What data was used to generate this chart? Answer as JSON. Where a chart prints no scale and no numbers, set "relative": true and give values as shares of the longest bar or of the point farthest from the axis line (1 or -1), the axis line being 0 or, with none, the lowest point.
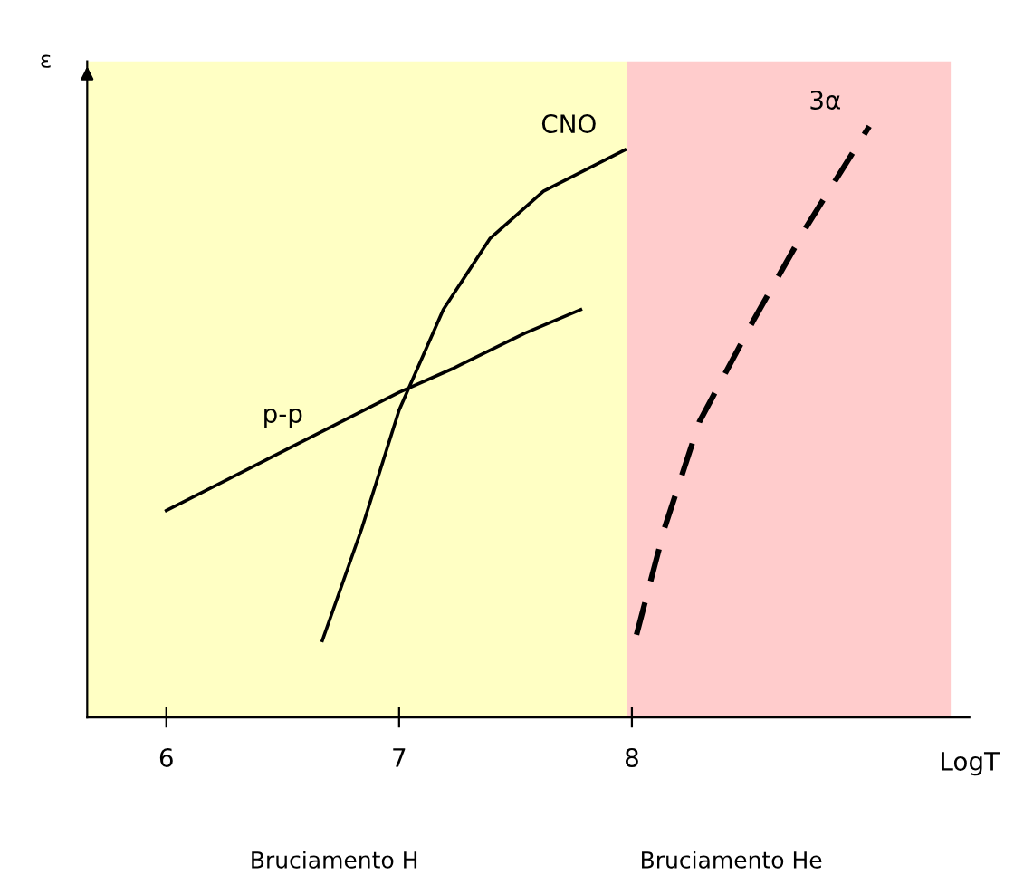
{
  "chart_data": {
    "type": "line",
    "xlabel": "LogT",
    "ylabel": "ε",
    "relative": true,
    "xlim": [
      5.66,
      9.45
    ],
    "xticks": [
      6,
      7,
      8
    ],
    "grid": false,
    "legend": false,
    "series": [
      {
        "name": "p-p",
        "color": "#000000",
        "line_style": "solid",
        "x": [
          6.0,
          6.45,
          7.0,
          7.23,
          7.54,
          7.78
        ],
        "values": [
          0.35,
          0.44,
          0.55,
          0.59,
          0.65,
          0.69
        ]
      },
      {
        "name": "CNO",
        "color": "#000000",
        "line_style": "solid",
        "x": [
          6.67,
          6.84,
          7.0,
          7.19,
          7.39,
          7.62,
          7.97
        ],
        "values": [
          0.13,
          0.32,
          0.52,
          0.69,
          0.81,
          0.89,
          0.96
        ]
      },
      {
        "name": "3α",
        "color": "#000000",
        "line_style": "dashed",
        "x": [
          8.02,
          8.14,
          8.29,
          8.52,
          8.75,
          9.02
        ],
        "values": [
          0.14,
          0.32,
          0.5,
          0.67,
          0.83,
          1.0
        ]
      }
    ],
    "annotations": [
      "Bruciamento H",
      "Bruciamento He"
    ],
    "bands": [
      {
        "axis": "x",
        "from": 5.66,
        "to": 7.98,
        "color": "#ffffc4"
      },
      {
        "axis": "x",
        "from": 7.98,
        "to": 9.37,
        "color": "#ffcccc"
      }
    ]
  }
}
